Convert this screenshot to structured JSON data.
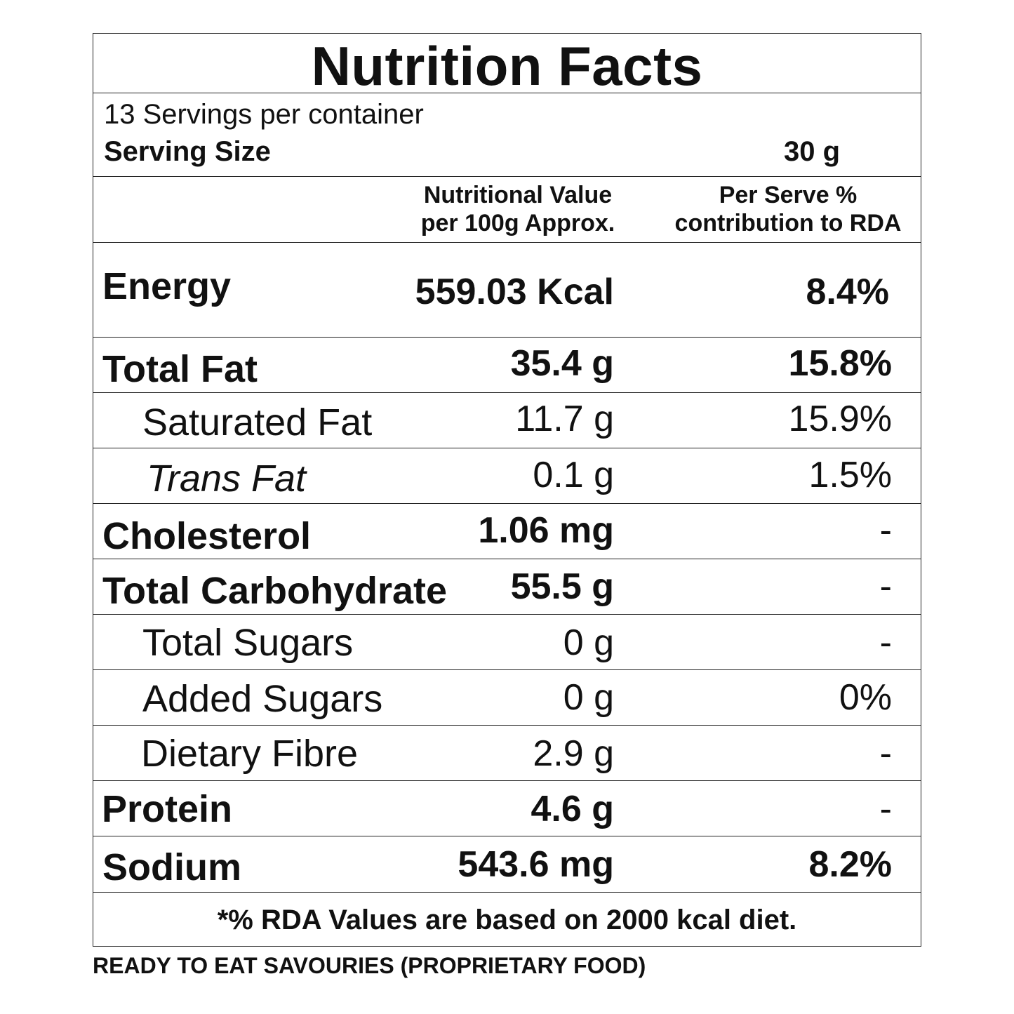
{
  "label": {
    "title": "Nutrition Facts",
    "servings_per_container": "13 Servings per container",
    "serving_size_label": "Serving Size",
    "serving_size_value": "30 g",
    "col_value_line1": "Nutritional Value",
    "col_value_line2": "per 100g Approx.",
    "col_rda_line1": "Per Serve %",
    "col_rda_line2": "contribution to RDA",
    "rows": [
      {
        "name": "Energy",
        "value": "559.03 Kcal",
        "rda": "8.4%"
      },
      {
        "name": "Total Fat",
        "value": "35.4 g",
        "rda": "15.8%"
      },
      {
        "name": "Saturated Fat",
        "value": "11.7 g",
        "rda": "15.9%"
      },
      {
        "name": "Trans Fat",
        "value": "0.1 g",
        "rda": "1.5%"
      },
      {
        "name": "Cholesterol",
        "value": "1.06 mg",
        "rda": "-"
      },
      {
        "name": "Total Carbohydrate",
        "value": "55.5 g",
        "rda": "-"
      },
      {
        "name": "Total Sugars",
        "value": "0 g",
        "rda": "-"
      },
      {
        "name": "Added Sugars",
        "value": "0 g",
        "rda": "0%"
      },
      {
        "name": "Dietary Fibre",
        "value": "2.9 g",
        "rda": "-"
      },
      {
        "name": "Protein",
        "value": "4.6 g",
        "rda": "-"
      },
      {
        "name": "Sodium",
        "value": "543.6 mg",
        "rda": "8.2%"
      }
    ],
    "footnote": "*% RDA Values are based on 2000 kcal diet."
  },
  "bottom_note": "READY TO EAT SAVOURIES (PROPRIETARY FOOD)"
}
